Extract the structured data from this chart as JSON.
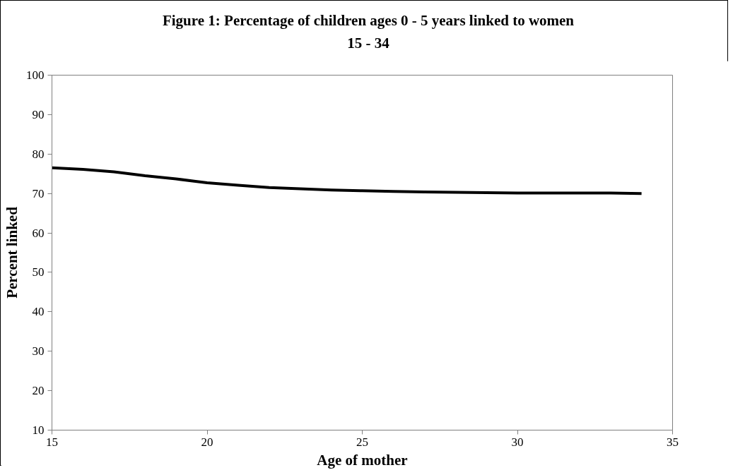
{
  "chart_data": {
    "type": "line",
    "title": "Figure 1: Percentage of children ages 0 - 5 years linked to women\n15 - 34",
    "xlabel": "Age of mother",
    "ylabel": "Percent linked",
    "x": [
      15,
      16,
      17,
      18,
      19,
      20,
      21,
      22,
      23,
      24,
      25,
      26,
      27,
      28,
      29,
      30,
      31,
      32,
      33,
      34
    ],
    "series": [
      {
        "color": "#000000",
        "values": [
          76.5,
          76.1,
          75.5,
          74.5,
          73.7,
          72.7,
          72.1,
          71.5,
          71.2,
          70.9,
          70.7,
          70.5,
          70.4,
          70.3,
          70.2,
          70.1,
          70.1,
          70.1,
          70.1,
          70.0
        ]
      }
    ],
    "xlim": [
      15,
      35
    ],
    "xticks": [
      15,
      20,
      25,
      30,
      35
    ],
    "ylim": [
      10,
      100
    ],
    "yticks": [
      10,
      20,
      30,
      40,
      50,
      60,
      70,
      80,
      90,
      100
    ],
    "grid": false,
    "marker": "none",
    "line_style": "solid"
  }
}
